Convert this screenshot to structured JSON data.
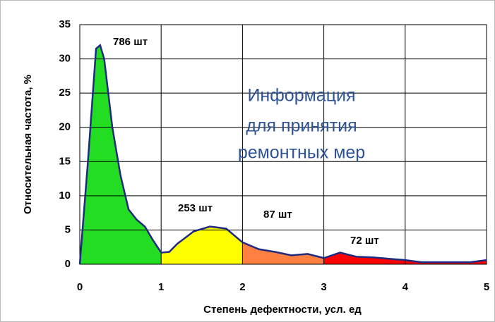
{
  "chart_data": {
    "type": "area",
    "xlabel": "Степень дефектности, усл. ед",
    "ylabel": "Относительная частота, %",
    "xlim": [
      0,
      5
    ],
    "xticks": [
      0,
      1,
      2,
      3,
      4,
      5
    ],
    "ylim": [
      0,
      35
    ],
    "yticks": [
      0,
      5,
      10,
      15,
      20,
      25,
      30,
      35
    ],
    "grid": true,
    "line_color": "#1f2a80",
    "series": [
      {
        "color": "#22dd22",
        "x": [
          0,
          0.1,
          0.2,
          0.25,
          0.3,
          0.4,
          0.5,
          0.6,
          0.7,
          0.8,
          0.9,
          1.0
        ],
        "values": [
          0,
          15,
          31.5,
          32,
          30,
          20,
          13,
          8,
          6.5,
          5.5,
          3.5,
          1.7
        ]
      },
      {
        "color": "#ffff00",
        "x": [
          1.0,
          1.1,
          1.2,
          1.4,
          1.6,
          1.8,
          2.0
        ],
        "values": [
          1.7,
          1.8,
          3,
          4.8,
          5.5,
          5.2,
          3.2
        ]
      },
      {
        "color": "#ff8040",
        "x": [
          2.0,
          2.2,
          2.4,
          2.6,
          2.8,
          3.0
        ],
        "values": [
          3.2,
          2.2,
          1.8,
          1.3,
          1.5,
          0.9
        ]
      },
      {
        "color": "#ff0000",
        "x": [
          3.0,
          3.2,
          3.4,
          3.6,
          3.8,
          4.0,
          4.2,
          4.4,
          4.6,
          4.8,
          5.0
        ],
        "values": [
          0.9,
          1.7,
          1.1,
          1.0,
          0.8,
          0.6,
          0.3,
          0.3,
          0.3,
          0.3,
          0.6
        ]
      }
    ],
    "annotations": [
      "786 шт",
      "253 шт",
      "87 шт",
      "72 шт"
    ],
    "note": [
      "Информация",
      "для принятия",
      "ремонтных мер"
    ]
  }
}
